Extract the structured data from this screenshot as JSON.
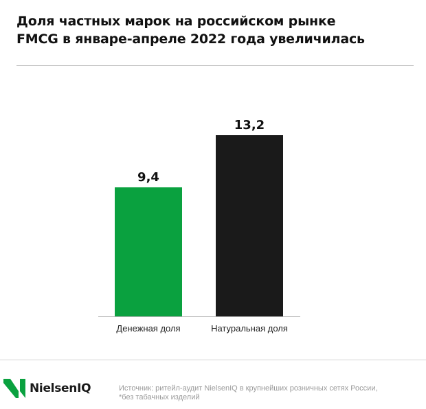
{
  "title": {
    "line1": "Доля частных марок на российском рынке",
    "line2": "FMCG в январе-апреле 2022 года увеличилась"
  },
  "chart_data": {
    "type": "bar",
    "categories": [
      "Денежная доля",
      "Натуральная доля"
    ],
    "values": [
      9.4,
      13.2
    ],
    "value_labels": [
      "9,4",
      "13,2"
    ],
    "colors": [
      "#0aa13f",
      "#1a1a1a"
    ],
    "ylim": [
      0,
      14.6
    ],
    "grid": false,
    "title": "Доля частных марок на российском рынке FMCG в январе-апреле 2022 года увеличилась"
  },
  "logo": {
    "text": "NielsenIQ",
    "color": "#0aa13f"
  },
  "source": {
    "line1": "Источник: ритейл-аудит NielsenIQ в крупнейших розничных сетях России,",
    "line2": "*без табачных изделий"
  }
}
